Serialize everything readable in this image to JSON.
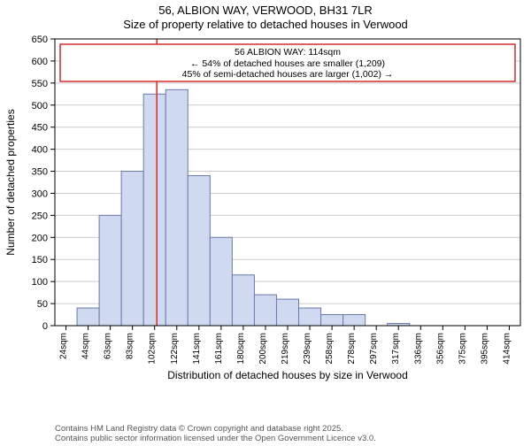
{
  "title": {
    "line1": "56, ALBION WAY, VERWOOD, BH31 7LR",
    "line2": "Size of property relative to detached houses in Verwood"
  },
  "chart": {
    "type": "histogram",
    "background_color": "#ffffff",
    "plot_border_color": "#000000",
    "grid_color": "#cccccc",
    "bar_fill": "#cfd9ef",
    "bar_stroke": "#6a7aa8",
    "marker_line_color": "#e03030",
    "annotation_border": "#d02020",
    "ylabel": "Number of detached properties",
    "xlabel": "Distribution of detached houses by size in Verwood",
    "ylim": [
      0,
      650
    ],
    "ytick_step": 50,
    "x_categories": [
      "24sqm",
      "44sqm",
      "63sqm",
      "83sqm",
      "102sqm",
      "122sqm",
      "141sqm",
      "161sqm",
      "180sqm",
      "200sqm",
      "219sqm",
      "239sqm",
      "258sqm",
      "278sqm",
      "297sqm",
      "317sqm",
      "336sqm",
      "356sqm",
      "375sqm",
      "395sqm",
      "414sqm"
    ],
    "values": [
      0,
      40,
      250,
      350,
      525,
      535,
      340,
      200,
      115,
      70,
      60,
      40,
      25,
      25,
      0,
      5,
      0,
      0,
      0,
      0,
      0
    ],
    "marker_x_index": 4.6,
    "bar_width": 1.0,
    "title_fontsize": 13,
    "label_fontsize": 12,
    "tick_fontsize": 11,
    "xtick_fontsize": 10
  },
  "annotation": {
    "line1": "56 ALBION WAY: 114sqm",
    "line2": "← 54% of detached houses are smaller (1,209)",
    "line3": "45% of semi-detached houses are larger (1,002) →"
  },
  "footer": {
    "line1": "Contains HM Land Registry data © Crown copyright and database right 2025.",
    "line2": "Contains public sector information licensed under the Open Government Licence v3.0."
  }
}
